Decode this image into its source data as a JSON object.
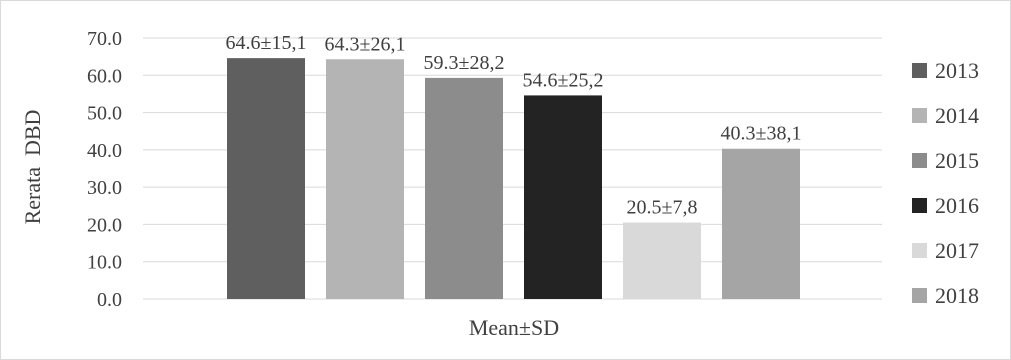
{
  "chart_data": {
    "type": "bar",
    "ylabel": "Rerata  DBD",
    "xlabel": "Mean±SD",
    "ylim": [
      0,
      70
    ],
    "yticks": [
      "0.0",
      "10.0",
      "20.0",
      "30.0",
      "40.0",
      "50.0",
      "60.0",
      "70.0"
    ],
    "grid": true,
    "legend_position": "right",
    "categories": [
      "Mean±SD"
    ],
    "series": [
      {
        "name": "2013",
        "value": 64.6,
        "label": "64.6±15,1",
        "color": "#5f5f5f"
      },
      {
        "name": "2014",
        "value": 64.3,
        "label": "64.3±26,1",
        "color": "#b4b4b4"
      },
      {
        "name": "2015",
        "value": 59.3,
        "label": "59.3±28,2",
        "color": "#8c8c8c"
      },
      {
        "name": "2016",
        "value": 54.6,
        "label": "54.6±25,2",
        "color": "#232323"
      },
      {
        "name": "2017",
        "value": 20.5,
        "label": "20.5±7,8",
        "color": "#d9d9d9"
      },
      {
        "name": "2018",
        "value": 40.3,
        "label": "40.3±38,1",
        "color": "#a5a5a5"
      }
    ]
  }
}
